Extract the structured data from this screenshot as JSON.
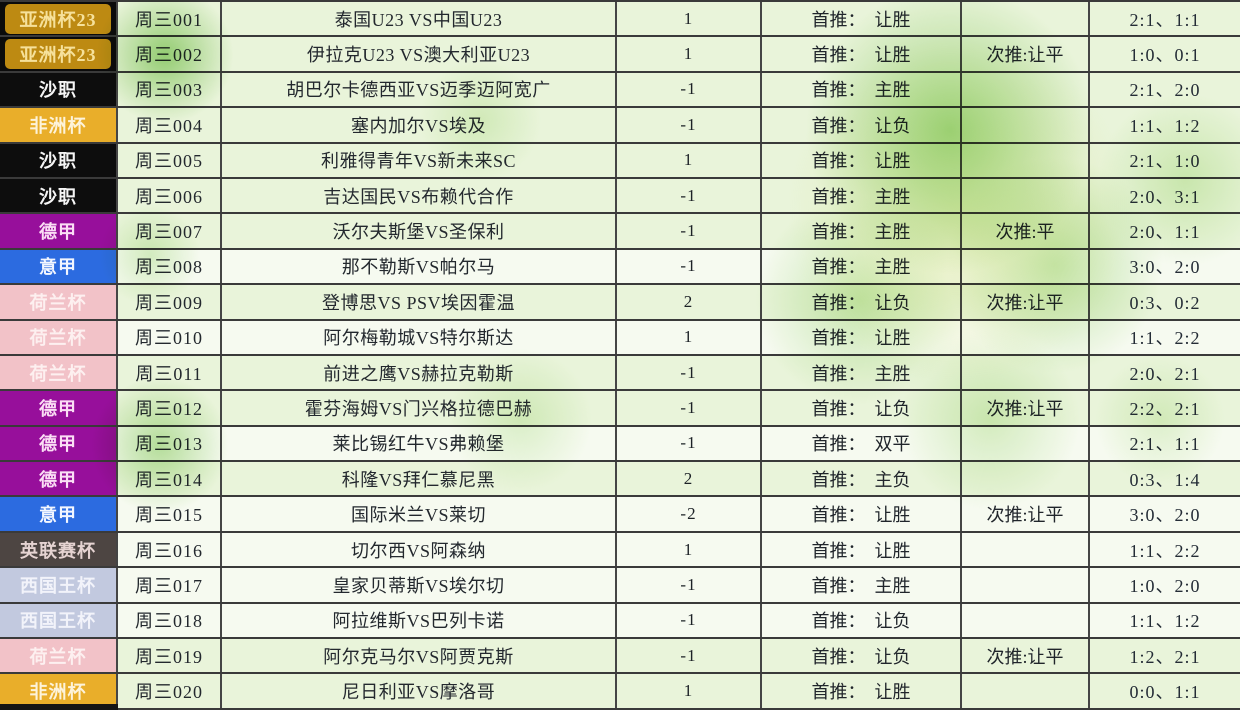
{
  "table": {
    "pick_labels": {
      "first_prefix": "首推：",
      "second_prefix": "次推:"
    },
    "badge_styles": {
      "asia": {
        "bg": "#bd8a12",
        "text": "#f6e19b",
        "cell_bg": "#0b0b0b",
        "inset": true
      },
      "saudi": {
        "bg": "#0d0d0d",
        "text": "#f5f5f5",
        "inset": false
      },
      "africa": {
        "bg": "#e9ae2a",
        "text": "#fdf3da",
        "inset": false
      },
      "bundesliga": {
        "bg": "#970f9b",
        "text": "#fbdef5",
        "inset": false
      },
      "seriea": {
        "bg": "#2c6be0",
        "text": "#f2f6ff",
        "inset": false
      },
      "dutch": {
        "bg": "#f2c2c8",
        "text": "#fdf0f0",
        "inset": false
      },
      "efl": {
        "bg": "#4d4542",
        "text": "#e5d3d1",
        "inset": false
      },
      "copa": {
        "bg": "#c2c9df",
        "text": "#f2f3fa",
        "inset": false
      }
    },
    "rows": [
      {
        "league": "亚洲杯23",
        "style": "asia",
        "no": "周三001",
        "match": "泰国U23 VS中国U23",
        "handicap": "1",
        "first": "让胜",
        "second": "",
        "scores": "2:1、1:1"
      },
      {
        "league": "亚洲杯23",
        "style": "asia",
        "no": "周三002",
        "match": "伊拉克U23 VS澳大利亚U23",
        "handicap": "1",
        "first": "让胜",
        "second": "让平",
        "scores": "1:0、0:1"
      },
      {
        "league": "沙职",
        "style": "saudi",
        "no": "周三003",
        "match": "胡巴尔卡德西亚VS迈季迈阿宽广",
        "handicap": "-1",
        "first": "主胜",
        "second": "",
        "scores": "2:1、2:0"
      },
      {
        "league": "非洲杯",
        "style": "africa",
        "no": "周三004",
        "match": "塞内加尔VS埃及",
        "handicap": "-1",
        "first": "让负",
        "second": "",
        "scores": "1:1、1:2"
      },
      {
        "league": "沙职",
        "style": "saudi",
        "no": "周三005",
        "match": "利雅得青年VS新未来SC",
        "handicap": "1",
        "first": "让胜",
        "second": "",
        "scores": "2:1、1:0"
      },
      {
        "league": "沙职",
        "style": "saudi",
        "no": "周三006",
        "match": "吉达国民VS布赖代合作",
        "handicap": "-1",
        "first": "主胜",
        "second": "",
        "scores": "2:0、3:1"
      },
      {
        "league": "德甲",
        "style": "bundesliga",
        "no": "周三007",
        "match": "沃尔夫斯堡VS圣保利",
        "handicap": "-1",
        "first": "主胜",
        "second": "平",
        "scores": "2:0、1:1"
      },
      {
        "league": "意甲",
        "style": "seriea",
        "no": "周三008",
        "match": "那不勒斯VS帕尔马",
        "handicap": "-1",
        "first": "主胜",
        "second": "",
        "scores": "3:0、2:0"
      },
      {
        "league": "荷兰杯",
        "style": "dutch",
        "no": "周三009",
        "match": "登博思VS PSV埃因霍温",
        "handicap": "2",
        "first": "让负",
        "second": "让平",
        "scores": "0:3、0:2"
      },
      {
        "league": "荷兰杯",
        "style": "dutch",
        "no": "周三010",
        "match": "阿尔梅勒城VS特尔斯达",
        "handicap": "1",
        "first": "让胜",
        "second": "",
        "scores": "1:1、2:2"
      },
      {
        "league": "荷兰杯",
        "style": "dutch",
        "no": "周三011",
        "match": "前进之鹰VS赫拉克勒斯",
        "handicap": "-1",
        "first": "主胜",
        "second": "",
        "scores": "2:0、2:1"
      },
      {
        "league": "德甲",
        "style": "bundesliga",
        "no": "周三012",
        "match": "霍芬海姆VS门兴格拉德巴赫",
        "handicap": "-1",
        "first": "让负",
        "second": "让平",
        "scores": "2:2、2:1"
      },
      {
        "league": "德甲",
        "style": "bundesliga",
        "no": "周三013",
        "match": "莱比锡红牛VS弗赖堡",
        "handicap": "-1",
        "first": "双平",
        "second": "",
        "scores": "2:1、1:1"
      },
      {
        "league": "德甲",
        "style": "bundesliga",
        "no": "周三014",
        "match": "科隆VS拜仁慕尼黑",
        "handicap": "2",
        "first": "主负",
        "second": "",
        "scores": "0:3、1:4"
      },
      {
        "league": "意甲",
        "style": "seriea",
        "no": "周三015",
        "match": "国际米兰VS莱切",
        "handicap": "-2",
        "first": "让胜",
        "second": "让平",
        "scores": "3:0、2:0"
      },
      {
        "league": "英联赛杯",
        "style": "efl",
        "no": "周三016",
        "match": "切尔西VS阿森纳",
        "handicap": "1",
        "first": "让胜",
        "second": "",
        "scores": "1:1、2:2"
      },
      {
        "league": "西国王杯",
        "style": "copa",
        "no": "周三017",
        "match": "皇家贝蒂斯VS埃尔切",
        "handicap": "-1",
        "first": "主胜",
        "second": "",
        "scores": "1:0、2:0"
      },
      {
        "league": "西国王杯",
        "style": "copa",
        "no": "周三018",
        "match": "阿拉维斯VS巴列卡诺",
        "handicap": "-1",
        "first": "让负",
        "second": "",
        "scores": "1:1、1:2"
      },
      {
        "league": "荷兰杯",
        "style": "dutch",
        "no": "周三019",
        "match": "阿尔克马尔VS阿贾克斯",
        "handicap": "-1",
        "first": "让负",
        "second": "让平",
        "scores": "1:2、2:1"
      },
      {
        "league": "非洲杯",
        "style": "africa",
        "no": "周三020",
        "match": "尼日利亚VS摩洛哥",
        "handicap": "1",
        "first": "让胜",
        "second": "",
        "scores": "0:0、1:1"
      }
    ]
  }
}
